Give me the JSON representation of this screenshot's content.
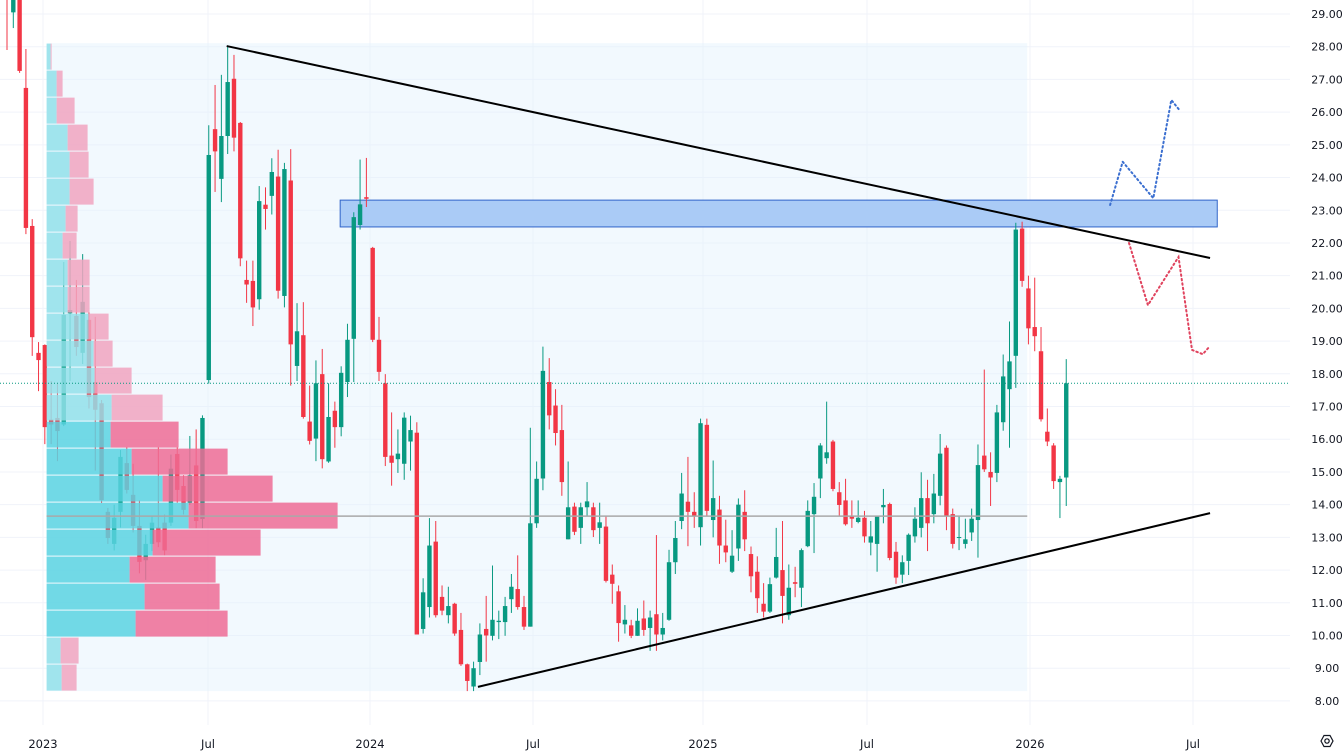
{
  "chart_data": {
    "type": "candlestick",
    "interval": "weekly",
    "x_ticks": [
      "2023",
      "Jul",
      "2024",
      "Jul",
      "2025",
      "Jul",
      "2026",
      "Jul"
    ],
    "y_ticks": [
      "29.00",
      "28.00",
      "27.00",
      "26.00",
      "25.00",
      "24.00",
      "23.00",
      "22.00",
      "21.00",
      "20.00",
      "19.00",
      "18.00",
      "17.00",
      "16.00",
      "15.00",
      "14.00",
      "13.00",
      "12.00",
      "11.00",
      "10.00",
      "9.00",
      "8.00"
    ],
    "ylim": [
      8,
      29
    ],
    "grid": true,
    "colors": {
      "up": "#089981",
      "down": "#f23645",
      "profile_up": "#5ad3e2",
      "profile_down": "#ee6c95",
      "profile_up_light": "#92e0ea",
      "profile_down_light": "#f1a5bf",
      "zone": "#a5c8f5",
      "zone_border": "#2f63c9",
      "bull_path": "#3b6fd0",
      "bear_path": "#e0435e",
      "trendline": "#000000",
      "poc": "#a9a9a9"
    },
    "candles_ohlc": [
      [
        30.2,
        30.6,
        27.9,
        29.6
      ],
      [
        29.05,
        29.9,
        28.57,
        29.6
      ],
      [
        29.8,
        30.0,
        27.2,
        27.26
      ],
      [
        26.74,
        27.93,
        22.27,
        22.46
      ],
      [
        22.52,
        22.73,
        18.55,
        19.12
      ],
      [
        18.64,
        18.97,
        17.47,
        18.42
      ],
      [
        18.88,
        18.9,
        15.85,
        16.37
      ],
      [
        16.6,
        17.78,
        15.85,
        16.45
      ],
      [
        16.65,
        17.72,
        15.33,
        16.25
      ],
      [
        16.45,
        21.42,
        16.4,
        19.8
      ],
      [
        19.85,
        22.06,
        17.78,
        19.95
      ],
      [
        19.77,
        20.87,
        18.55,
        18.82
      ],
      [
        18.64,
        21.66,
        18.3,
        20.2
      ],
      [
        19.65,
        19.88,
        16.94,
        17.29
      ],
      [
        17.75,
        19.74,
        15.04,
        16.9
      ],
      [
        17.1,
        17.2,
        14.05,
        14.14
      ],
      [
        13.78,
        13.9,
        12.8,
        12.98
      ],
      [
        12.8,
        14.0,
        12.6,
        13.6
      ],
      [
        13.78,
        15.67,
        13.3,
        15.46
      ],
      [
        15.27,
        15.75,
        14.34,
        14.45
      ],
      [
        14.3,
        15.25,
        13.15,
        13.35
      ],
      [
        13.35,
        14.13,
        11.9,
        12.25
      ],
      [
        12.3,
        13.08,
        11.7,
        12.8
      ],
      [
        12.8,
        13.65,
        12.58,
        13.45
      ],
      [
        13.3,
        15.75,
        12.7,
        12.85
      ],
      [
        13.45,
        13.7,
        12.45,
        12.6
      ],
      [
        13.45,
        15.53,
        13.35,
        15.1
      ],
      [
        15.55,
        15.75,
        14.06,
        14.45
      ],
      [
        14.57,
        14.9,
        13.7,
        13.84
      ],
      [
        14.06,
        16.1,
        13.99,
        14.9
      ],
      [
        15.2,
        16.3,
        13.28,
        13.5
      ],
      [
        13.56,
        16.73,
        13.28,
        16.65
      ],
      [
        17.81,
        25.6,
        17.7,
        24.69
      ],
      [
        25.48,
        26.83,
        23.56,
        24.8
      ],
      [
        23.96,
        27.14,
        23.25,
        25.27
      ],
      [
        25.27,
        28.03,
        24.72,
        26.92
      ],
      [
        27.02,
        27.75,
        24.8,
        25.22
      ],
      [
        25.67,
        25.7,
        21.29,
        21.53
      ],
      [
        20.87,
        21.46,
        20.17,
        20.73
      ],
      [
        20.84,
        21.46,
        19.46,
        20.03
      ],
      [
        20.28,
        23.74,
        19.96,
        23.28
      ],
      [
        23.17,
        23.7,
        22.41,
        23.04
      ],
      [
        23.44,
        24.59,
        22.87,
        24.17
      ],
      [
        24.03,
        24.85,
        20.3,
        20.54
      ],
      [
        20.38,
        24.45,
        20.03,
        24.26
      ],
      [
        23.91,
        24.87,
        17.64,
        18.9
      ],
      [
        18.24,
        20.16,
        17.78,
        19.3
      ],
      [
        19.18,
        20.19,
        16.63,
        16.68
      ],
      [
        16.54,
        17.64,
        15.84,
        15.95
      ],
      [
        16.02,
        18.41,
        15.33,
        17.71
      ],
      [
        17.99,
        18.76,
        15.11,
        15.39
      ],
      [
        15.32,
        17.71,
        15.28,
        16.68
      ],
      [
        16.87,
        17.15,
        15.74,
        16.37
      ],
      [
        16.37,
        18.23,
        16.09,
        18.03
      ],
      [
        17.75,
        19.53,
        17.29,
        19.04
      ],
      [
        19.07,
        22.94,
        17.75,
        22.79
      ],
      [
        22.55,
        24.55,
        22.41,
        23.18
      ],
      [
        23.4,
        24.6,
        23.1,
        23.35
      ],
      [
        21.85,
        21.88,
        18.97,
        19.04
      ],
      [
        19.04,
        19.74,
        17.78,
        18.06
      ],
      [
        17.71,
        17.99,
        15.18,
        15.46
      ],
      [
        15.5,
        16.82,
        14.58,
        15.28
      ],
      [
        15.39,
        16.3,
        14.97,
        15.56
      ],
      [
        15.25,
        16.82,
        14.76,
        16.66
      ],
      [
        15.93,
        16.72,
        15.04,
        16.28
      ],
      [
        16.2,
        16.52,
        10.03,
        10.03
      ],
      [
        10.2,
        11.75,
        10.06,
        11.32
      ],
      [
        10.87,
        13.59,
        10.55,
        12.75
      ],
      [
        12.87,
        13.5,
        10.55,
        10.62
      ],
      [
        11.18,
        11.53,
        10.62,
        10.76
      ],
      [
        10.62,
        11.49,
        10.37,
        10.9
      ],
      [
        10.97,
        11.0,
        9.99,
        10.06
      ],
      [
        10.17,
        10.69,
        9.07,
        9.12
      ],
      [
        9.12,
        9.14,
        8.3,
        8.61
      ],
      [
        8.44,
        9.2,
        8.3,
        9.0
      ],
      [
        9.19,
        10.37,
        8.79,
        10.03
      ],
      [
        10.2,
        11.21,
        9.2,
        10.0
      ],
      [
        9.99,
        12.14,
        9.85,
        10.48
      ],
      [
        10.41,
        10.76,
        9.89,
        10.45
      ],
      [
        10.41,
        11.18,
        9.99,
        10.9
      ],
      [
        11.11,
        11.88,
        10.69,
        11.49
      ],
      [
        11.42,
        12.45,
        10.79,
        10.87
      ],
      [
        10.87,
        11.21,
        10.17,
        10.27
      ],
      [
        10.27,
        16.35,
        10.27,
        13.43
      ],
      [
        13.43,
        15.32,
        13.29,
        14.79
      ],
      [
        14.8,
        18.83,
        14.44,
        18.09
      ],
      [
        17.75,
        18.48,
        16.3,
        16.73
      ],
      [
        17.03,
        17.53,
        15.81,
        16.19
      ],
      [
        16.28,
        17.05,
        14.27,
        14.69
      ],
      [
        12.94,
        15.32,
        12.94,
        13.92
      ],
      [
        13.94,
        14.06,
        13.07,
        13.17
      ],
      [
        13.29,
        14.06,
        12.8,
        13.92
      ],
      [
        13.92,
        14.69,
        13.64,
        14.1
      ],
      [
        13.92,
        14.06,
        13.01,
        13.22
      ],
      [
        13.29,
        14.06,
        12.8,
        13.46
      ],
      [
        13.33,
        13.64,
        11.62,
        11.67
      ],
      [
        11.86,
        12.17,
        10.97,
        11.58
      ],
      [
        11.35,
        11.53,
        9.81,
        10.38
      ],
      [
        10.34,
        10.93,
        10.06,
        10.48
      ],
      [
        10.31,
        10.48,
        9.92,
        9.99
      ],
      [
        9.99,
        10.83,
        9.99,
        10.45
      ],
      [
        10.52,
        11.07,
        9.99,
        10.17
      ],
      [
        10.23,
        10.76,
        9.53,
        10.55
      ],
      [
        10.65,
        13.07,
        9.53,
        10.03
      ],
      [
        10.03,
        10.69,
        9.85,
        10.23
      ],
      [
        10.48,
        12.62,
        10.45,
        12.24
      ],
      [
        12.24,
        13.5,
        11.88,
        12.98
      ],
      [
        13.5,
        14.97,
        13.25,
        14.34
      ],
      [
        14.09,
        15.46,
        12.73,
        13.78
      ],
      [
        13.78,
        14.38,
        13.29,
        13.64
      ],
      [
        13.31,
        16.63,
        12.75,
        16.49
      ],
      [
        16.44,
        16.63,
        13.64,
        13.81
      ],
      [
        13.53,
        15.35,
        13.0,
        14.2
      ],
      [
        13.85,
        14.27,
        12.19,
        12.75
      ],
      [
        12.75,
        13.54,
        12.24,
        12.54
      ],
      [
        11.95,
        13.22,
        11.91,
        12.44
      ],
      [
        12.66,
        14.19,
        12.28,
        14.0
      ],
      [
        13.78,
        14.44,
        12.58,
        12.94
      ],
      [
        12.49,
        12.72,
        11.32,
        11.81
      ],
      [
        11.95,
        12.42,
        10.69,
        11.14
      ],
      [
        10.97,
        11.6,
        10.55,
        10.73
      ],
      [
        10.73,
        11.77,
        10.69,
        11.57
      ],
      [
        11.77,
        13.29,
        11.74,
        12.4
      ],
      [
        12.0,
        13.5,
        10.37,
        11.21
      ],
      [
        10.62,
        12.17,
        10.48,
        11.46
      ],
      [
        11.63,
        12.1,
        11.17,
        11.58
      ],
      [
        11.46,
        12.66,
        10.87,
        12.61
      ],
      [
        12.73,
        14.13,
        12.7,
        13.81
      ],
      [
        13.71,
        14.66,
        12.52,
        14.24
      ],
      [
        14.8,
        15.88,
        14.2,
        15.81
      ],
      [
        15.42,
        17.15,
        15.25,
        15.6
      ],
      [
        15.93,
        15.98,
        14.41,
        14.48
      ],
      [
        14.38,
        14.69,
        13.64,
        13.99
      ],
      [
        14.13,
        14.79,
        13.36,
        13.4
      ],
      [
        13.64,
        14.13,
        13.29,
        13.57
      ],
      [
        13.47,
        14.13,
        13.43,
        13.6
      ],
      [
        13.6,
        13.81,
        12.84,
        13.03
      ],
      [
        12.84,
        13.5,
        12.45,
        13.03
      ],
      [
        12.8,
        13.64,
        11.95,
        13.64
      ],
      [
        13.92,
        14.48,
        13.43,
        13.99
      ],
      [
        14.02,
        14.06,
        12.3,
        12.37
      ],
      [
        12.56,
        12.86,
        11.58,
        11.77
      ],
      [
        11.86,
        12.45,
        11.6,
        12.24
      ],
      [
        12.28,
        13.12,
        11.85,
        13.08
      ],
      [
        13.03,
        13.92,
        12.84,
        13.57
      ],
      [
        13.29,
        14.99,
        13.0,
        14.2
      ],
      [
        14.2,
        14.76,
        12.58,
        13.43
      ],
      [
        13.71,
        14.94,
        13.43,
        14.34
      ],
      [
        14.27,
        16.16,
        13.98,
        15.56
      ],
      [
        15.74,
        15.81,
        13.22,
        13.64
      ],
      [
        13.71,
        13.88,
        12.66,
        12.8
      ],
      [
        13.0,
        13.64,
        12.61,
        13.01
      ],
      [
        12.8,
        13.57,
        12.66,
        12.94
      ],
      [
        13.15,
        13.88,
        12.89,
        13.57
      ],
      [
        13.53,
        15.84,
        12.38,
        15.21
      ],
      [
        15.5,
        18.13,
        15.0,
        15.08
      ],
      [
        15.0,
        15.6,
        13.96,
        14.83
      ],
      [
        14.97,
        17.05,
        14.69,
        16.82
      ],
      [
        16.52,
        18.59,
        16.26,
        17.92
      ],
      [
        17.53,
        19.6,
        15.74,
        18.38
      ],
      [
        18.55,
        22.62,
        17.57,
        22.41
      ],
      [
        22.44,
        22.65,
        20.66,
        20.84
      ],
      [
        20.61,
        21.0,
        18.9,
        19.39
      ],
      [
        19.43,
        20.94,
        18.69,
        19.15
      ],
      [
        18.69,
        19.43,
        16.54,
        16.61
      ],
      [
        16.23,
        16.94,
        15.79,
        15.93
      ],
      [
        15.81,
        15.88,
        14.48,
        14.72
      ],
      [
        14.69,
        14.88,
        13.59,
        14.79
      ],
      [
        14.83,
        18.45,
        13.96,
        17.71
      ]
    ],
    "last_price": 17.71,
    "volume_profile": {
      "start": "2023-01-05",
      "end": "2025-12-29",
      "price_range": [
        8.3,
        28.11
      ],
      "poc_price": 13.65,
      "rows_top_to_bottom": [
        {
          "up": 4,
          "down": 1,
          "value_area": false
        },
        {
          "up": 10,
          "down": 6,
          "value_area": false
        },
        {
          "up": 10,
          "down": 18,
          "value_area": false
        },
        {
          "up": 21,
          "down": 20,
          "value_area": false
        },
        {
          "up": 23,
          "down": 19,
          "value_area": false
        },
        {
          "up": 23,
          "down": 24,
          "value_area": false
        },
        {
          "up": 19,
          "down": 12,
          "value_area": false
        },
        {
          "up": 16,
          "down": 14,
          "value_area": false
        },
        {
          "up": 21,
          "down": 22,
          "value_area": false
        },
        {
          "up": 21,
          "down": 22,
          "value_area": false
        },
        {
          "up": 42,
          "down": 20,
          "value_area": false
        },
        {
          "up": 47,
          "down": 19,
          "value_area": false
        },
        {
          "up": 48,
          "down": 37,
          "value_area": false
        },
        {
          "up": 65,
          "down": 51,
          "value_area": false
        },
        {
          "up": 64,
          "down": 68,
          "value_area": true
        },
        {
          "up": 85,
          "down": 96,
          "value_area": true
        },
        {
          "up": 116,
          "down": 110,
          "value_area": true
        },
        {
          "up": 142,
          "down": 149,
          "value_area": true
        },
        {
          "up": 106,
          "down": 108,
          "value_area": true
        },
        {
          "up": 83,
          "down": 86,
          "value_area": true
        },
        {
          "up": 98,
          "down": 75,
          "value_area": true
        },
        {
          "up": 89,
          "down": 92,
          "value_area": true
        },
        {
          "up": 14,
          "down": 18,
          "value_area": false
        },
        {
          "up": 15,
          "down": 15,
          "value_area": false
        }
      ]
    },
    "drawings": {
      "resistance_trendline": {
        "from": [
          "2023-07-24",
          28.02
        ],
        "to": [
          "2026-07-20",
          21.54
        ]
      },
      "support_trendline": {
        "from": [
          "2024-04-28",
          8.43
        ],
        "to": [
          "2026-07-20",
          13.74
        ]
      },
      "resistance_zone": {
        "from": "2023-11-27",
        "to": "2026-07-28",
        "top": 23.31,
        "bottom": 22.49
      },
      "bullish_projection": [
        [
          "2026-03-31",
          23.16
        ],
        [
          "2026-04-14",
          24.48
        ],
        [
          "2026-05-18",
          23.37
        ],
        [
          "2026-06-07",
          26.37
        ],
        [
          "2026-06-17",
          26.03
        ]
      ],
      "bearish_projection": [
        [
          "2026-04-21",
          22.0
        ],
        [
          "2026-05-12",
          20.1
        ],
        [
          "2026-06-15",
          21.57
        ],
        [
          "2026-06-30",
          18.73
        ],
        [
          "2026-07-12",
          18.6
        ],
        [
          "2026-07-20",
          18.85
        ]
      ]
    },
    "settings_icon": "hexagon-gear-icon"
  }
}
